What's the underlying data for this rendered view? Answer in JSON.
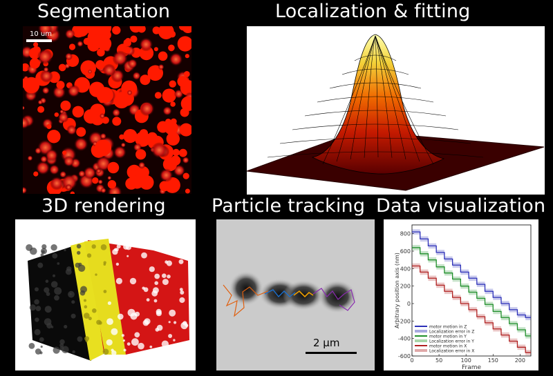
{
  "titles": {
    "segmentation": "Segmentation",
    "localization": "Localization & fitting",
    "rendering": "3D rendering",
    "tracking": "Particle tracking",
    "visualization": "Data visualization"
  },
  "segmentation_panel": {
    "scalebar_label": "10 um"
  },
  "tracking_panel": {
    "scalebar_label": "2 µm"
  },
  "chart_data": {
    "type": "line",
    "title": "",
    "xlabel": "Frame",
    "ylabel": "Arbitrary position axis (nm)",
    "xlim": [
      0,
      220
    ],
    "ylim": [
      -600,
      900
    ],
    "xticks": [
      0,
      50,
      100,
      150,
      200
    ],
    "yticks": [
      -600,
      -400,
      -200,
      0,
      200,
      400,
      600,
      800
    ],
    "legend_placement": "bottom-left",
    "series": [
      {
        "name": "motor motion in Z",
        "color": "#2b2fb8",
        "x": [
          0,
          15,
          15,
          30,
          30,
          45,
          45,
          60,
          60,
          75,
          75,
          90,
          90,
          105,
          105,
          120,
          120,
          135,
          135,
          150,
          150,
          165,
          165,
          180,
          180,
          195,
          195,
          210,
          210,
          220
        ],
        "y": [
          820,
          820,
          740,
          740,
          660,
          660,
          585,
          585,
          510,
          510,
          440,
          440,
          360,
          360,
          290,
          290,
          220,
          220,
          140,
          140,
          70,
          70,
          0,
          0,
          -70,
          -70,
          -130,
          -130,
          -160,
          -160
        ]
      },
      {
        "name": "Localization error  in Z",
        "color": "#a8aae0"
      },
      {
        "name": "motor motion in Y",
        "color": "#1f8f2a",
        "x": [
          0,
          15,
          15,
          30,
          30,
          45,
          45,
          60,
          60,
          75,
          75,
          90,
          90,
          105,
          105,
          120,
          120,
          135,
          135,
          150,
          150,
          165,
          165,
          180,
          180,
          195,
          195,
          210,
          210,
          220
        ],
        "y": [
          640,
          640,
          570,
          570,
          500,
          500,
          420,
          420,
          350,
          350,
          280,
          280,
          200,
          200,
          130,
          130,
          60,
          60,
          -10,
          -10,
          -90,
          -90,
          -160,
          -160,
          -230,
          -230,
          -300,
          -300,
          -370,
          -370
        ]
      },
      {
        "name": "Localization error  in Y",
        "color": "#a9d6a9"
      },
      {
        "name": "motor motion in X",
        "color": "#b02020",
        "x": [
          0,
          15,
          15,
          30,
          30,
          45,
          45,
          60,
          60,
          75,
          75,
          90,
          90,
          105,
          105,
          120,
          120,
          135,
          135,
          150,
          150,
          165,
          165,
          180,
          180,
          195,
          195,
          210,
          210,
          220
        ],
        "y": [
          430,
          430,
          360,
          360,
          290,
          290,
          210,
          210,
          140,
          140,
          70,
          70,
          0,
          0,
          -70,
          -70,
          -150,
          -150,
          -220,
          -220,
          -290,
          -290,
          -360,
          -360,
          -430,
          -430,
          -500,
          -500,
          -560,
          -560
        ]
      },
      {
        "name": "Localization error  in X",
        "color": "#e0a8a8"
      }
    ]
  }
}
